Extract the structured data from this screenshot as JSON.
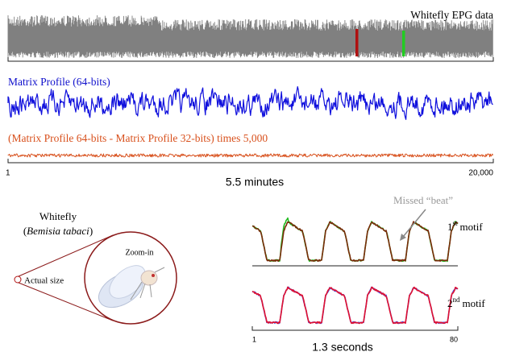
{
  "top_panel": {
    "epg_label": "Whitefly EPG data",
    "mp64_label": "Matrix Profile (64-bits)",
    "diff_label": "(Matrix Profile 64-bits - Matrix Profile 32-bits) times 5,000",
    "axis_start": "1",
    "axis_end": "20,000",
    "axis_caption": "5.5 minutes"
  },
  "insect": {
    "name": "Whitefly",
    "species_line": [
      "(",
      "Bemisia tabaci",
      ")"
    ],
    "actual_size": "Actual size",
    "zoom": "Zoom-in"
  },
  "motifs": {
    "annotation": "Missed “beat”",
    "first": {
      "number": "1",
      "suffix": "st",
      "word": "motif"
    },
    "second": {
      "number": "2",
      "suffix": "nd",
      "word": "motif"
    },
    "axis_start": "1",
    "axis_end": "80",
    "axis_caption": "1.3 seconds"
  }
}
